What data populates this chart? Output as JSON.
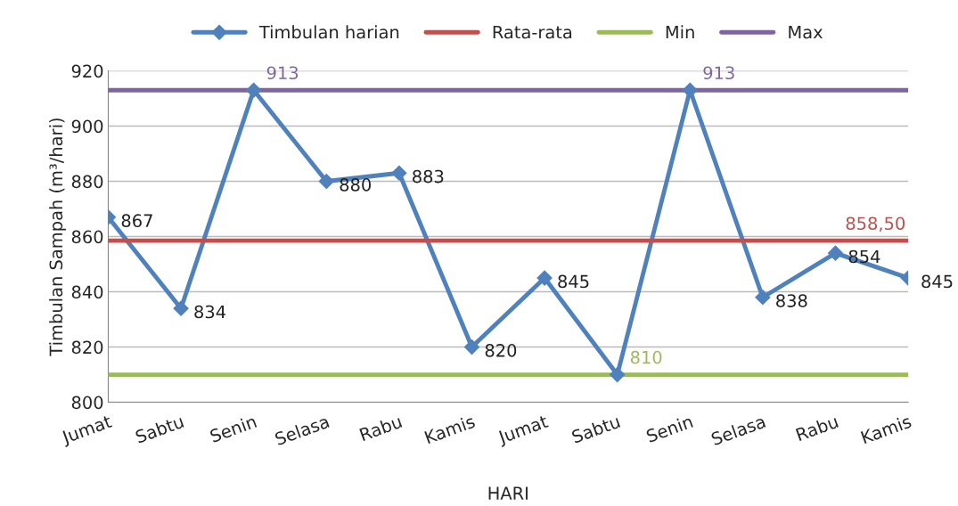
{
  "chart_data": {
    "type": "line",
    "xlabel": "HARI",
    "ylabel": "Timbulan Sampah (m³/hari)",
    "categories": [
      "Jumat",
      "Sabtu",
      "Senin",
      "Selasa",
      "Rabu",
      "Kamis",
      "Jumat",
      "Sabtu",
      "Senin",
      "Selasa",
      "Rabu",
      "Kamis"
    ],
    "series": [
      {
        "name": "Timbulan harian",
        "color": "#4f81bd",
        "marker": "diamond",
        "values": [
          867,
          834,
          913,
          880,
          883,
          820,
          845,
          810,
          913,
          838,
          854,
          845
        ],
        "value_labels": [
          "867",
          "834",
          null,
          "880",
          "883",
          "820",
          "845",
          null,
          null,
          "838",
          "854",
          "845"
        ]
      },
      {
        "name": "Rata-rata",
        "color": "#c0504d",
        "marker": "none",
        "values": [
          858.5,
          858.5,
          858.5,
          858.5,
          858.5,
          858.5,
          858.5,
          858.5,
          858.5,
          858.5,
          858.5,
          858.5
        ],
        "value_labels": [
          null,
          null,
          null,
          null,
          null,
          null,
          null,
          null,
          null,
          null,
          null,
          "858,50"
        ]
      },
      {
        "name": "Min",
        "color": "#9bbb59",
        "marker": "none",
        "values": [
          810,
          810,
          810,
          810,
          810,
          810,
          810,
          810,
          810,
          810,
          810,
          810
        ],
        "value_labels": [
          null,
          null,
          null,
          null,
          null,
          null,
          null,
          "810",
          null,
          null,
          null,
          null
        ]
      },
      {
        "name": "Max",
        "color": "#8064a2",
        "marker": "none",
        "values": [
          913,
          913,
          913,
          913,
          913,
          913,
          913,
          913,
          913,
          913,
          913,
          913
        ],
        "value_labels": [
          null,
          null,
          "913",
          null,
          null,
          null,
          null,
          null,
          "913",
          null,
          null,
          null
        ]
      }
    ],
    "ylim": [
      800,
      920
    ],
    "yticks": [
      800,
      820,
      840,
      860,
      880,
      900,
      920
    ],
    "grid": "y",
    "legend": "top",
    "line_style": "solid"
  }
}
